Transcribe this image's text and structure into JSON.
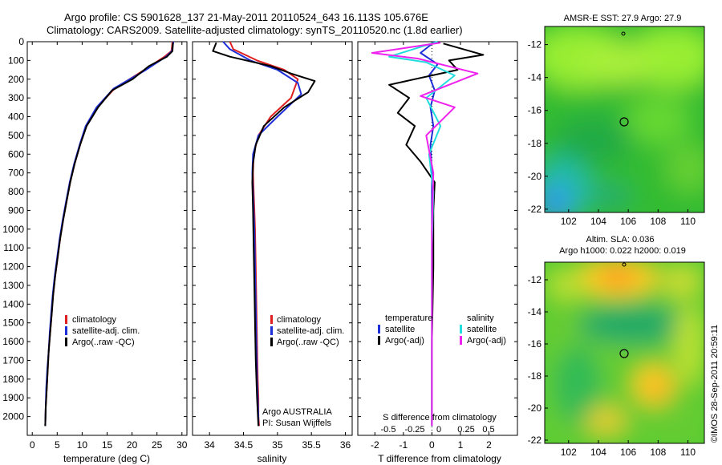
{
  "header": {
    "line1": "Argo profile: CS 5901628_137 21-May-2011 20110524_643 16.113S 105.676E",
    "line2": "Climatology: CARS2009. Satellite-adjusted climatology: synTS_20110520.nc (1.8d earlier)"
  },
  "credit": "©IMOS 28-Sep-2011 20:59:11",
  "colors": {
    "climatology": "#e02020",
    "satellite": "#1f2fd8",
    "argo": "#000000",
    "argo_salinity_diff": "#ee22ee",
    "satellite_salinity_diff": "#22dddd"
  },
  "chart_data": [
    {
      "type": "line",
      "xlabel": "temperature (deg C)",
      "ylim": [
        2100,
        0
      ],
      "xlim": [
        -1,
        31
      ],
      "xticks": [
        0,
        5,
        10,
        15,
        20,
        25,
        30
      ],
      "yticks": [
        0,
        100,
        200,
        300,
        400,
        500,
        600,
        700,
        800,
        900,
        1000,
        1100,
        1200,
        1300,
        1400,
        1500,
        1600,
        1700,
        1800,
        1900,
        2000
      ],
      "legend": [
        "climatology",
        "satellite-adj. clim.",
        "Argo(..raw -QC)"
      ],
      "series": [
        {
          "name": "climatology",
          "color": "#e02020",
          "x": [
            28.1,
            27.9,
            26.5,
            22.5,
            16.5,
            13.0,
            10.8,
            9.6,
            8.5,
            7.6,
            6.9,
            6.2,
            5.6,
            5.1,
            4.6,
            4.2,
            3.9,
            3.6,
            3.3,
            3.1,
            2.9,
            2.7,
            2.6
          ],
          "y": [
            0,
            50,
            80,
            150,
            250,
            350,
            450,
            550,
            650,
            750,
            850,
            950,
            1050,
            1150,
            1250,
            1350,
            1450,
            1550,
            1650,
            1750,
            1850,
            1950,
            2050
          ]
        },
        {
          "name": "satellite-adj. clim.",
          "color": "#1f2fd8",
          "x": [
            28.3,
            28.0,
            26.8,
            22.8,
            16.3,
            12.9,
            10.7,
            9.5,
            8.4,
            7.5,
            6.8,
            6.1,
            5.5,
            5.0,
            4.5,
            4.1,
            3.8,
            3.5,
            3.3,
            3.0,
            2.8,
            2.7,
            2.6
          ],
          "y": [
            0,
            50,
            80,
            150,
            250,
            350,
            450,
            550,
            650,
            750,
            850,
            950,
            1050,
            1150,
            1250,
            1350,
            1450,
            1550,
            1650,
            1750,
            1850,
            1950,
            2050
          ]
        },
        {
          "name": "Argo(..raw -QC)",
          "color": "#000000",
          "x": [
            28.2,
            28.1,
            27.0,
            23.4,
            20.1,
            16.0,
            13.2,
            10.9,
            9.6,
            8.5,
            7.6,
            6.9,
            6.2,
            5.6,
            5.1,
            4.6,
            4.2,
            3.9,
            3.6,
            3.3,
            3.1,
            2.9,
            2.7,
            2.6
          ],
          "y": [
            5,
            50,
            80,
            130,
            200,
            260,
            350,
            450,
            550,
            650,
            750,
            850,
            950,
            1050,
            1150,
            1250,
            1350,
            1450,
            1550,
            1650,
            1750,
            1850,
            1950,
            2050
          ]
        }
      ]
    },
    {
      "type": "line",
      "xlabel": "salinity",
      "ylim": [
        2100,
        0
      ],
      "xlim": [
        33.75,
        36.1
      ],
      "xticks": [
        34,
        34.5,
        35,
        35.5,
        36
      ],
      "legend": [
        "climatology",
        "satellite-adj. clim.",
        "Argo(..raw -QC)"
      ],
      "annotation": [
        "Argo AUSTRALIA",
        "PI: Susan Wijffels"
      ],
      "series": [
        {
          "name": "climatology",
          "color": "#e02020",
          "x": [
            34.3,
            34.35,
            34.7,
            35.1,
            35.3,
            35.2,
            34.9,
            34.72,
            34.65,
            34.64,
            34.65,
            34.66,
            34.67,
            34.68,
            34.69,
            34.7,
            34.71,
            34.72,
            34.72,
            34.73
          ],
          "y": [
            0,
            40,
            100,
            150,
            200,
            300,
            400,
            500,
            600,
            700,
            800,
            900,
            1000,
            1200,
            1400,
            1600,
            1800,
            1900,
            2000,
            2050
          ]
        },
        {
          "name": "satellite-adj. clim.",
          "color": "#1f2fd8",
          "x": [
            34.2,
            34.3,
            34.6,
            35.0,
            35.3,
            35.35,
            35.0,
            34.72,
            34.64,
            34.63,
            34.64,
            34.65,
            34.66,
            34.67,
            34.68,
            34.69,
            34.7,
            34.71,
            34.72,
            34.72
          ],
          "y": [
            0,
            40,
            100,
            150,
            220,
            280,
            400,
            500,
            600,
            700,
            800,
            900,
            1000,
            1200,
            1400,
            1600,
            1800,
            1900,
            2000,
            2050
          ]
        },
        {
          "name": "Argo(..raw -QC)",
          "color": "#000000",
          "x": [
            34.1,
            34.05,
            34.3,
            34.9,
            35.2,
            35.55,
            35.45,
            35.1,
            34.8,
            34.68,
            34.64,
            34.63,
            34.64,
            34.65,
            34.66,
            34.67,
            34.68,
            34.7,
            34.72
          ],
          "y": [
            5,
            50,
            80,
            130,
            170,
            210,
            270,
            350,
            450,
            550,
            650,
            750,
            900,
            1100,
            1300,
            1500,
            1700,
            1900,
            2050
          ]
        }
      ]
    },
    {
      "type": "line",
      "xlabel": "T difference from climatology",
      "xlabel_top": "S difference from climatology",
      "ylim": [
        2100,
        0
      ],
      "xlim": [
        -2.6,
        3.0
      ],
      "xticks": [
        -2,
        -1,
        0,
        1,
        2
      ],
      "xticks_top": [
        -0.5,
        -0.25,
        0,
        0.25,
        0.5
      ],
      "legend_headers": [
        "temperature",
        "salinity"
      ],
      "legend": [
        "satellite",
        "Argo(-adj)",
        "satellite",
        "Argo(-adj)"
      ],
      "series": [
        {
          "name": "satellite",
          "color": "#1f2fd8",
          "x": [
            0.1,
            -0.4,
            0.2,
            -0.1,
            0.1,
            -0.05,
            0.05,
            -0.05,
            0.0,
            0.0,
            0.0,
            0.0,
            0.0,
            0.0
          ],
          "y": [
            0,
            60,
            120,
            180,
            260,
            350,
            450,
            550,
            700,
            900,
            1200,
            1500,
            1800,
            2050
          ]
        },
        {
          "name": "Argo(-adj)",
          "color": "#000000",
          "x": [
            0.4,
            1.8,
            0.6,
            0.9,
            -1.5,
            -0.8,
            -1.2,
            -0.6,
            -0.9,
            -0.4,
            0.1,
            0.05,
            0.05,
            0.0,
            0.0
          ],
          "y": [
            10,
            70,
            100,
            150,
            230,
            300,
            380,
            450,
            550,
            640,
            750,
            900,
            1200,
            1600,
            2050
          ]
        },
        {
          "name": "satellite",
          "color": "#22dddd",
          "x": [
            0.2,
            -1.5,
            -0.2,
            0.8,
            -0.2,
            0.3,
            -0.1,
            0.05,
            0.0,
            0.0,
            0.0
          ],
          "y": [
            0,
            80,
            110,
            180,
            300,
            450,
            600,
            800,
            1100,
            1500,
            2050
          ]
        },
        {
          "name": "Argo(-adj)",
          "color": "#ee22ee",
          "x": [
            0.3,
            -2.1,
            -0.5,
            1.6,
            -0.4,
            0.8,
            -0.2,
            0.05,
            0.0,
            0.0
          ],
          "y": [
            5,
            60,
            90,
            170,
            290,
            350,
            500,
            700,
            1000,
            2050
          ]
        }
      ]
    },
    {
      "type": "heatmap",
      "title": "AMSR-E SST: 27.9 Argo: 27.9",
      "xlim": [
        100.4,
        111.1
      ],
      "ylim": [
        -22.2,
        -10.9
      ],
      "xticks": [
        102,
        104,
        106,
        108,
        110
      ],
      "yticks": [
        -12,
        -14,
        -16,
        -18,
        -20,
        -22
      ],
      "argo_position": [
        105.7,
        -16.1
      ]
    },
    {
      "type": "heatmap",
      "title": "Altim. SLA: 0.036",
      "subtitle": "Argo h1000: 0.022 h2000: 0.019",
      "xlim": [
        100.4,
        111.1
      ],
      "ylim": [
        -22.2,
        -10.9
      ],
      "xticks": [
        102,
        104,
        106,
        108,
        110
      ],
      "yticks": [
        -12,
        -14,
        -16,
        -18,
        -20,
        -22
      ],
      "argo_position": [
        105.7,
        -16.1
      ]
    }
  ]
}
